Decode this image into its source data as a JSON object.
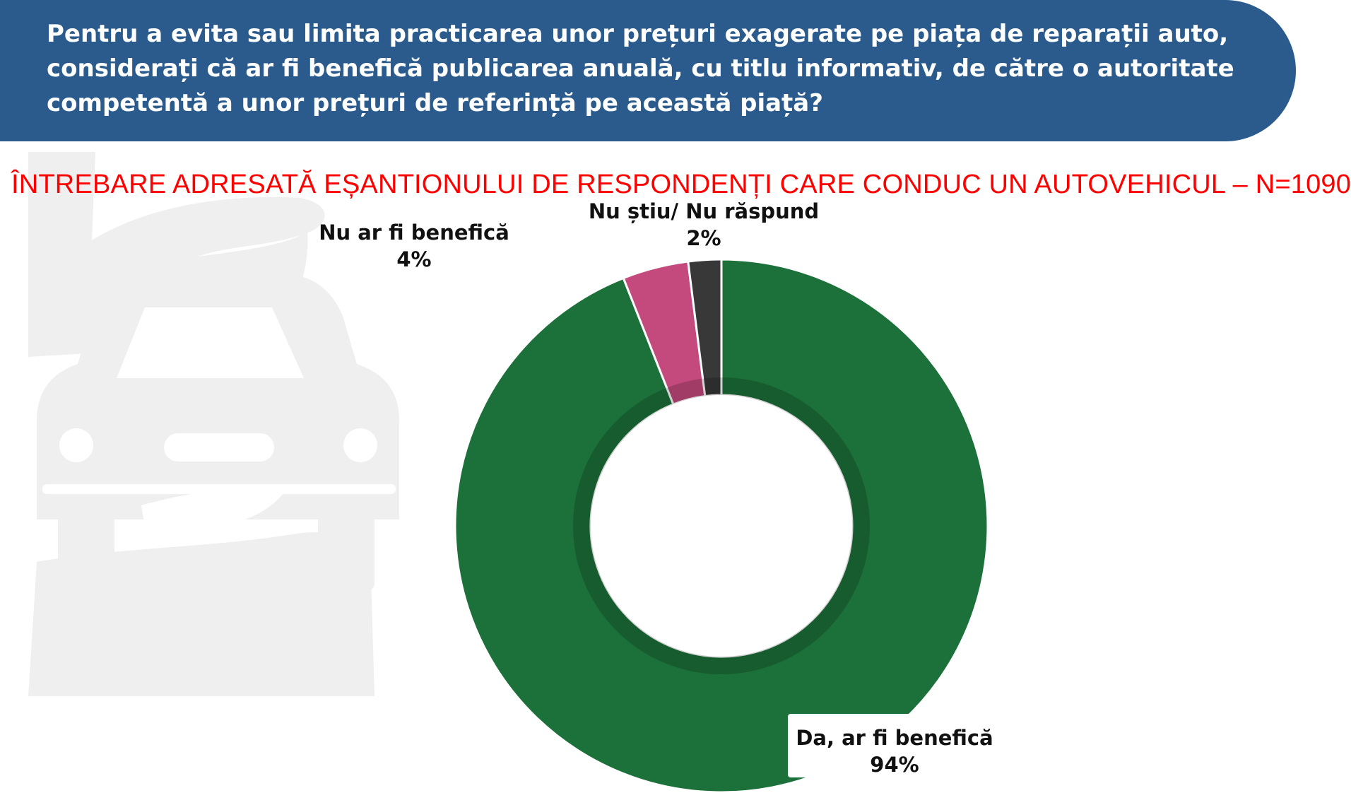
{
  "header": {
    "question": "Pentru a evita sau limita practicarea unor prețuri exagerate pe piața de reparații auto, considerați că ar fi benefică publicarea anuală, cu titlu informativ, de către o autoritate competentă a unor prețuri de referință pe această piață?"
  },
  "subtitle": "ÎNTREBARE ADRESATĂ EȘANTIONULUI DE RESPONDENȚI CARE CONDUC UN AUTOVEHICUL – N=1090",
  "background_icon": "car-in-hands-icon",
  "chart_data": {
    "type": "pie",
    "subtype": "donut",
    "categories": [
      "Da, ar fi benefică",
      "Nu ar fi benefică",
      "Nu știu/ Nu răspund"
    ],
    "values": [
      94,
      4,
      2
    ],
    "value_labels": [
      "94%",
      "4%",
      "2%"
    ],
    "colors": [
      "#1b7139",
      "#c44a7d",
      "#383838"
    ],
    "inner_ring_color": "#165c30",
    "start_angle_deg": 0,
    "direction": "clockwise"
  }
}
